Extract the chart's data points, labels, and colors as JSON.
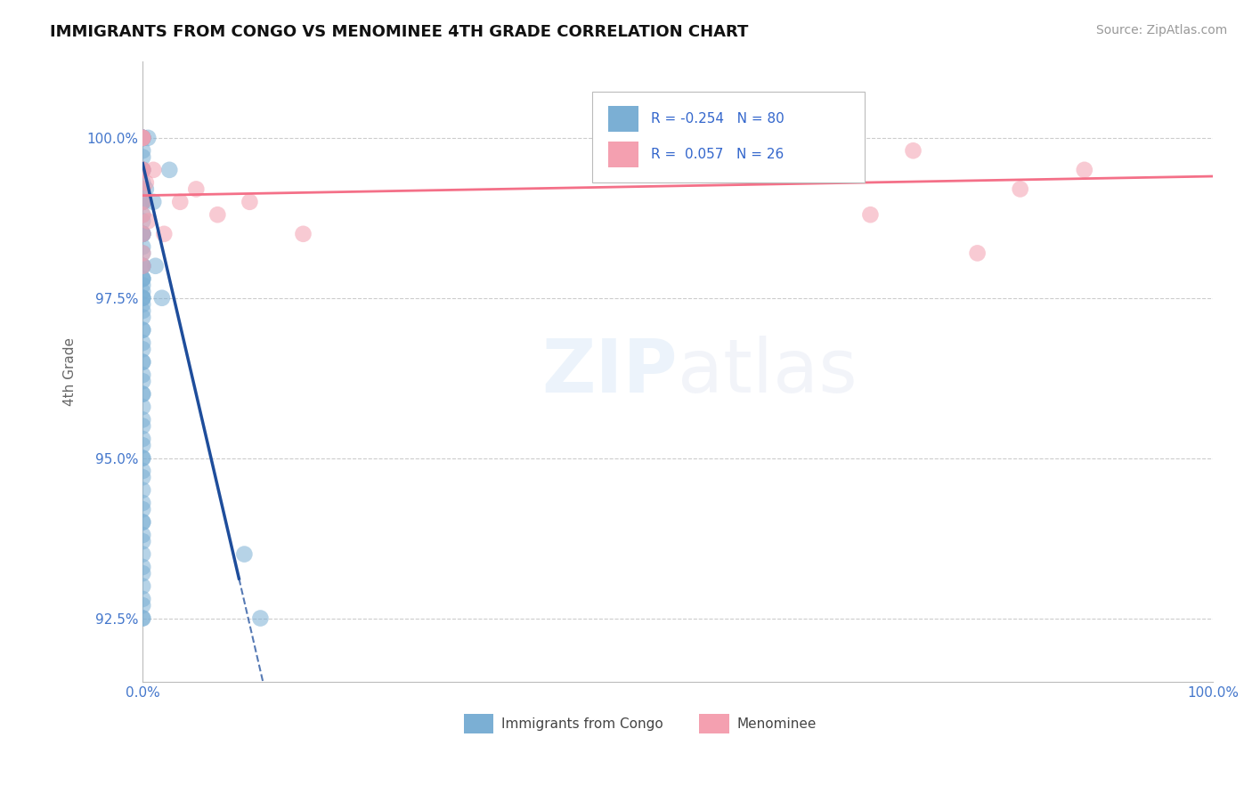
{
  "title": "IMMIGRANTS FROM CONGO VS MENOMINEE 4TH GRADE CORRELATION CHART",
  "source_text": "Source: ZipAtlas.com",
  "ylabel": "4th Grade",
  "xlim": [
    0.0,
    100.0
  ],
  "ylim": [
    91.5,
    101.2
  ],
  "yticks": [
    92.5,
    95.0,
    97.5,
    100.0
  ],
  "ytick_labels": [
    "92.5%",
    "95.0%",
    "97.5%",
    "100.0%"
  ],
  "xticks": [
    0.0,
    20.0,
    40.0,
    60.0,
    80.0,
    100.0
  ],
  "xtick_labels": [
    "0.0%",
    "",
    "",
    "",
    "",
    "100.0%"
  ],
  "color_blue": "#7BAFD4",
  "color_pink": "#F4A0B0",
  "color_line_blue": "#1E4D9B",
  "color_line_pink": "#F47088",
  "background_color": "#FFFFFF",
  "blue_x": [
    0.0,
    0.0,
    0.0,
    0.0,
    0.0,
    0.0,
    0.0,
    0.0,
    0.0,
    0.0,
    0.0,
    0.0,
    0.0,
    0.0,
    0.0,
    0.0,
    0.0,
    0.0,
    0.0,
    0.0,
    0.0,
    0.0,
    0.0,
    0.0,
    0.0,
    0.0,
    0.0,
    0.0,
    0.0,
    0.0,
    0.0,
    0.0,
    0.0,
    0.0,
    0.0,
    0.0,
    0.0,
    0.0,
    0.0,
    0.0,
    0.0,
    0.0,
    0.0,
    0.0,
    0.0,
    0.0,
    0.0,
    0.0,
    0.0,
    0.0,
    0.0,
    0.0,
    0.0,
    0.0,
    0.0,
    0.0,
    0.0,
    0.0,
    0.0,
    0.0,
    0.0,
    0.0,
    0.0,
    0.0,
    0.0,
    0.0,
    0.0,
    0.0,
    0.0,
    0.0,
    0.0,
    0.0,
    0.3,
    0.5,
    1.0,
    1.2,
    1.8,
    2.5,
    9.5,
    11.0
  ],
  "blue_y": [
    100.0,
    100.0,
    100.0,
    100.0,
    100.0,
    99.8,
    99.7,
    99.5,
    99.5,
    99.3,
    99.2,
    99.0,
    99.0,
    98.8,
    98.7,
    98.5,
    98.5,
    98.3,
    98.2,
    98.0,
    98.0,
    97.8,
    97.8,
    97.7,
    97.6,
    97.5,
    97.5,
    97.4,
    97.3,
    97.2,
    97.0,
    97.0,
    96.8,
    96.7,
    96.5,
    96.5,
    96.3,
    96.2,
    96.0,
    96.0,
    95.8,
    95.6,
    95.5,
    95.3,
    95.2,
    95.0,
    95.0,
    94.8,
    94.7,
    94.5,
    94.3,
    94.2,
    94.0,
    94.0,
    93.8,
    93.7,
    93.5,
    93.3,
    93.2,
    93.0,
    92.8,
    92.7,
    92.5,
    92.5,
    100.0,
    99.5,
    98.5,
    98.0,
    97.5,
    99.0,
    98.5,
    97.8,
    99.2,
    100.0,
    99.0,
    98.0,
    97.5,
    99.5,
    93.5,
    92.5
  ],
  "pink_x": [
    0.0,
    0.0,
    0.0,
    0.0,
    0.0,
    0.0,
    0.0,
    0.0,
    0.0,
    0.0,
    0.0,
    0.3,
    0.5,
    1.0,
    2.0,
    3.5,
    5.0,
    7.0,
    10.0,
    15.0,
    65.0,
    68.0,
    72.0,
    78.0,
    82.0,
    88.0
  ],
  "pink_y": [
    100.0,
    100.0,
    100.0,
    99.5,
    99.5,
    99.2,
    99.0,
    98.8,
    98.5,
    98.2,
    98.0,
    99.3,
    98.7,
    99.5,
    98.5,
    99.0,
    99.2,
    98.8,
    99.0,
    98.5,
    99.5,
    98.8,
    99.8,
    98.2,
    99.2,
    99.5
  ],
  "blue_line_x0": 0.0,
  "blue_line_y0": 99.6,
  "blue_line_slope": -0.72,
  "blue_solid_end_x": 9.0,
  "pink_line_y0": 99.1,
  "pink_line_slope": 0.003
}
